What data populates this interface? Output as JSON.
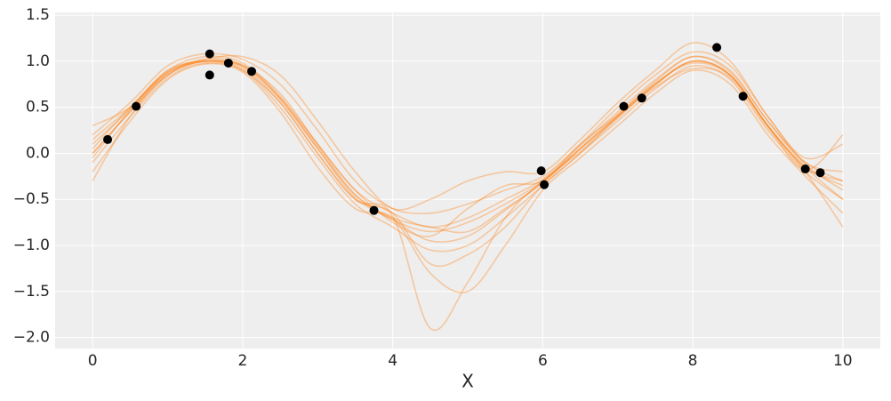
{
  "chart_data": {
    "type": "line",
    "x_label": "X",
    "xlim": [
      -0.5,
      10.5
    ],
    "ylim": [
      -2.12,
      1.53
    ],
    "xticks": [
      0,
      2,
      4,
      6,
      8,
      10
    ],
    "yticks": [
      {
        "value": -2,
        "label": "−2.0"
      },
      {
        "value": -1.5,
        "label": "−1.5"
      },
      {
        "value": -1,
        "label": "−1.0"
      },
      {
        "value": -0.5,
        "label": "−0.5"
      },
      {
        "value": 0,
        "label": "0.0"
      },
      0.5,
      {
        "value": 1,
        "label": "1.0"
      },
      1.5
    ],
    "grid": true,
    "background": "#eeeeee",
    "line_alpha": 0.35,
    "x": [
      0,
      0.5,
      1,
      1.5,
      2,
      2.5,
      3,
      3.5,
      4,
      4.5,
      5,
      5.5,
      6,
      6.5,
      7,
      7.5,
      8,
      8.5,
      9,
      9.5,
      10
    ],
    "series": [
      {
        "color": "#ff7f0e",
        "values": [
          0.0,
          0.45,
          0.85,
          1.0,
          0.95,
          0.6,
          0.05,
          -0.45,
          -0.72,
          -0.85,
          -0.75,
          -0.55,
          -0.3,
          0.05,
          0.4,
          0.75,
          1.0,
          0.85,
          0.3,
          -0.15,
          -0.35
        ]
      },
      {
        "color": "#ff7f0e",
        "values": [
          0.05,
          0.5,
          0.9,
          1.05,
          0.98,
          0.62,
          0.1,
          -0.4,
          -0.65,
          -0.8,
          -0.7,
          -0.5,
          -0.28,
          0.08,
          0.45,
          0.8,
          1.05,
          0.9,
          0.35,
          -0.1,
          -0.3
        ]
      },
      {
        "color": "#ff7f0e",
        "values": [
          -0.1,
          0.4,
          0.82,
          0.98,
          0.9,
          0.5,
          -0.05,
          -0.55,
          -0.8,
          -1.05,
          -1.0,
          -0.7,
          -0.35,
          0.0,
          0.35,
          0.7,
          0.95,
          0.8,
          0.25,
          -0.2,
          -0.5
        ]
      },
      {
        "color": "#ff7f0e",
        "values": [
          0.2,
          0.55,
          0.95,
          1.08,
          1.02,
          0.75,
          0.25,
          -0.3,
          -0.6,
          -0.65,
          -0.55,
          -0.4,
          -0.25,
          0.1,
          0.5,
          0.85,
          1.1,
          0.95,
          0.4,
          -0.1,
          -0.2
        ]
      },
      {
        "color": "#ff7f0e",
        "values": [
          -0.2,
          0.35,
          0.8,
          0.97,
          0.88,
          0.45,
          -0.15,
          -0.6,
          -0.7,
          -1.3,
          -1.5,
          -1.0,
          -0.4,
          -0.05,
          0.3,
          0.65,
          0.9,
          0.75,
          0.2,
          -0.25,
          -0.65
        ]
      },
      {
        "color": "#ff7f0e",
        "values": [
          0.1,
          0.48,
          0.88,
          1.02,
          1.05,
          0.85,
          0.35,
          -0.2,
          -0.6,
          -0.5,
          -0.3,
          -0.2,
          -0.2,
          0.15,
          0.55,
          0.9,
          1.2,
          1.0,
          0.4,
          -0.05,
          0.1
        ]
      },
      {
        "color": "#ff7f0e",
        "values": [
          -0.3,
          0.4,
          0.85,
          1.0,
          0.9,
          0.55,
          0.0,
          -0.5,
          -0.65,
          -1.2,
          -1.1,
          -0.8,
          -0.35,
          0.0,
          0.4,
          0.72,
          0.92,
          0.82,
          0.28,
          -0.2,
          -0.8
        ]
      },
      {
        "color": "#ff7f0e",
        "values": [
          0.3,
          0.5,
          0.9,
          1.0,
          0.95,
          0.65,
          0.1,
          -0.4,
          -0.75,
          -0.9,
          -0.6,
          -0.35,
          -0.3,
          0.1,
          0.42,
          0.78,
          1.05,
          0.88,
          0.35,
          -0.12,
          -0.4
        ]
      },
      {
        "color": "#ff7f0e",
        "values": [
          0.0,
          0.45,
          0.85,
          1.0,
          0.92,
          0.55,
          0.0,
          -0.5,
          -0.68,
          -1.9,
          -1.4,
          -0.7,
          -0.3,
          0.02,
          0.38,
          0.74,
          1.0,
          0.85,
          0.3,
          -0.15,
          -0.5
        ]
      },
      {
        "color": "#ff7f0e",
        "values": [
          -0.05,
          0.47,
          0.87,
          1.02,
          0.96,
          0.6,
          0.08,
          -0.45,
          -0.7,
          -0.8,
          -0.85,
          -0.6,
          -0.32,
          0.05,
          0.42,
          0.76,
          0.98,
          0.84,
          0.3,
          -0.16,
          -0.3
        ]
      },
      {
        "color": "#ff7f0e",
        "values": [
          0.15,
          0.5,
          0.88,
          1.0,
          0.94,
          0.58,
          0.05,
          -0.48,
          -0.72,
          -0.95,
          -0.9,
          -0.62,
          -0.31,
          0.05,
          0.4,
          0.75,
          1.0,
          0.85,
          0.3,
          -0.18,
          0.2
        ]
      }
    ],
    "scatter": {
      "color": "#000000",
      "x": [
        0.2,
        0.58,
        1.56,
        1.56,
        1.81,
        2.12,
        3.75,
        5.98,
        6.02,
        7.08,
        7.32,
        8.32,
        8.67,
        9.5,
        9.7
      ],
      "y": [
        0.15,
        0.51,
        1.08,
        0.85,
        0.98,
        0.89,
        -0.62,
        -0.19,
        -0.34,
        0.51,
        0.6,
        1.15,
        0.62,
        -0.17,
        -0.21
      ]
    }
  }
}
